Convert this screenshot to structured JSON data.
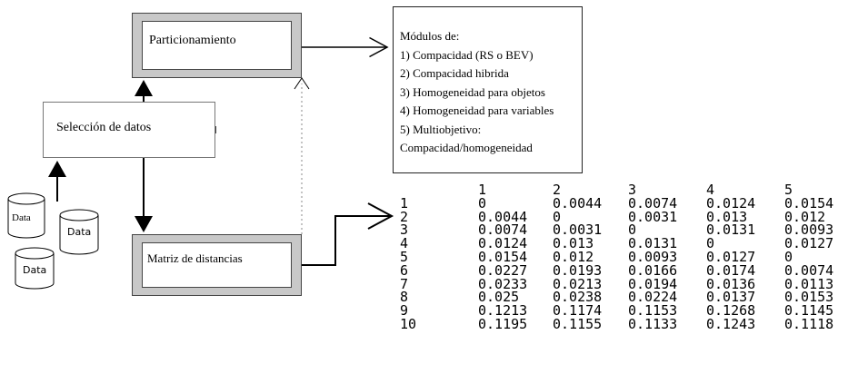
{
  "boxes": {
    "particionamiento": "Particionamiento",
    "seleccion": "Selección de datos",
    "matriz": "Matriz de distancias"
  },
  "databases": [
    "Data",
    "Data",
    "Data"
  ],
  "modulos": {
    "lines": [
      "Módulos de:",
      "1) Compacidad (RS o BEV)",
      "2) Compacidad hibrida",
      "3) Homogeneidad para objetos",
      "4) Homogeneidad para variables",
      "5) Multiobjetivo:",
      "Compacidad/homogeneidad"
    ]
  },
  "matrix": {
    "columns": [
      "1",
      "2",
      "3",
      "4",
      "5"
    ],
    "rows": [
      {
        "label": "1",
        "values": [
          "0",
          "0.0044",
          "0.0074",
          "0.0124",
          "0.0154"
        ]
      },
      {
        "label": "2",
        "values": [
          "0.0044",
          "0",
          "0.0031",
          "0.013",
          "0.012"
        ]
      },
      {
        "label": "3",
        "values": [
          "0.0074",
          "0.0031",
          "0",
          "0.0131",
          "0.0093"
        ]
      },
      {
        "label": "4",
        "values": [
          "0.0124",
          "0.013",
          "0.0131",
          "0",
          "0.0127"
        ]
      },
      {
        "label": "5",
        "values": [
          "0.0154",
          "0.012",
          "0.0093",
          "0.0127",
          "0"
        ]
      },
      {
        "label": "6",
        "values": [
          "0.0227",
          "0.0193",
          "0.0166",
          "0.0174",
          "0.0074"
        ]
      },
      {
        "label": "7",
        "values": [
          "0.0233",
          "0.0213",
          "0.0194",
          "0.0136",
          "0.0113"
        ]
      },
      {
        "label": "8",
        "values": [
          "0.025",
          "0.0238",
          "0.0224",
          "0.0137",
          "0.0153"
        ]
      },
      {
        "label": "9",
        "values": [
          "0.1213",
          "0.1174",
          "0.1153",
          "0.1268",
          "0.1145"
        ]
      },
      {
        "label": "10",
        "values": [
          "0.1195",
          "0.1155",
          "0.1133",
          "0.1243",
          "0.1118"
        ]
      }
    ]
  }
}
